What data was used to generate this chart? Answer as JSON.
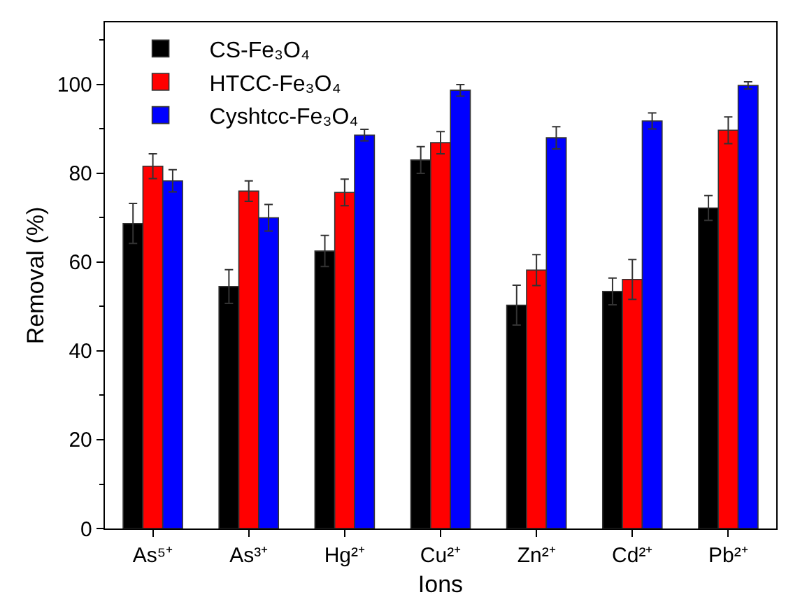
{
  "chart_data": {
    "type": "bar",
    "xlabel": "Ions",
    "ylabel": "Removal (%)",
    "categories": [
      "As⁵⁺",
      "As³⁺",
      "Hg²⁺",
      "Cu²⁺",
      "Zn²⁺",
      "Cd²⁺",
      "Pb²⁺"
    ],
    "series": [
      {
        "name": "CS-Fe₃O₄",
        "color": "#000000",
        "values": [
          68.7,
          54.5,
          62.5,
          83,
          50.3,
          53.4,
          72.2
        ],
        "errors": [
          4.5,
          3.8,
          3.5,
          3,
          4.5,
          3,
          2.8
        ]
      },
      {
        "name": "HTCC-Fe₃O₄",
        "color": "#ff0000",
        "values": [
          81.6,
          76,
          75.7,
          86.9,
          58.2,
          56.1,
          89.7
        ],
        "errors": [
          2.8,
          2.3,
          3,
          2.5,
          3.5,
          4.5,
          3
        ]
      },
      {
        "name": "Cyshtcc-Fe₃O₄",
        "color": "#0000ff",
        "values": [
          78.3,
          70,
          88.6,
          98.7,
          88,
          91.8,
          99.8
        ],
        "errors": [
          2.5,
          3,
          1.3,
          1.3,
          2.5,
          1.8,
          0.8
        ]
      }
    ],
    "ylim": [
      0,
      114
    ],
    "yticks": [
      0,
      20,
      40,
      60,
      80,
      100
    ],
    "grid": false,
    "legend": "top left"
  }
}
